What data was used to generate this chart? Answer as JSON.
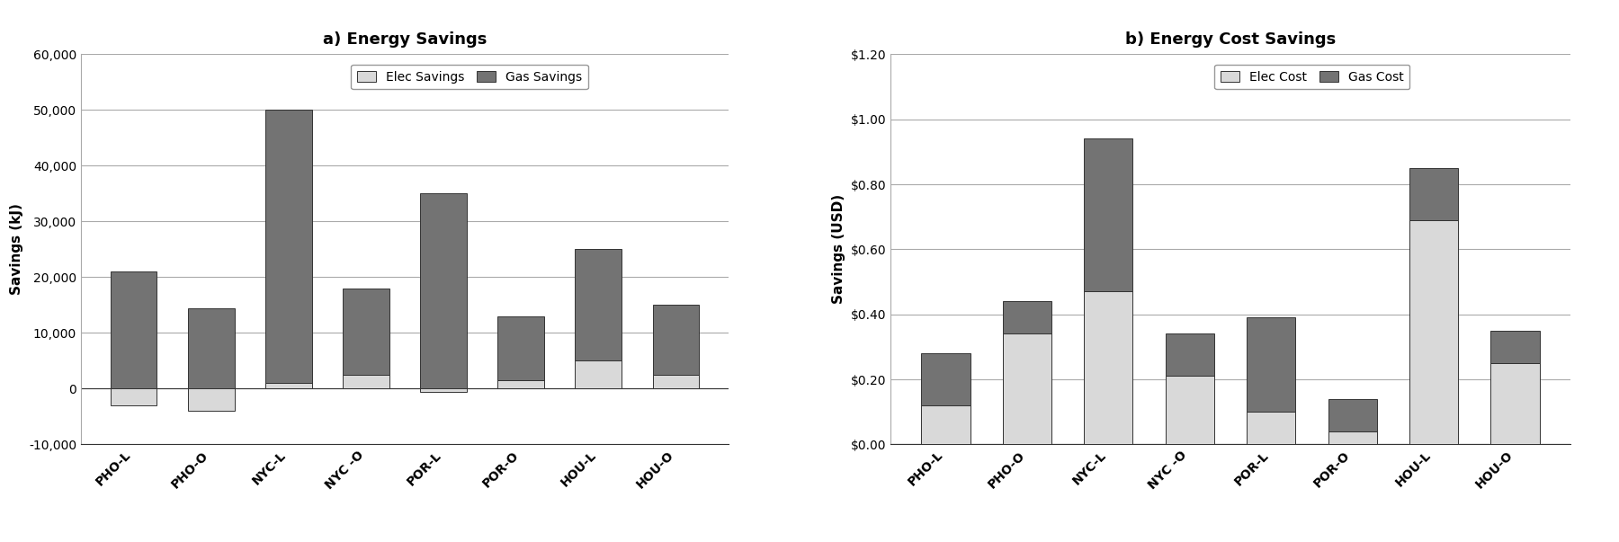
{
  "categories": [
    "PHO-L",
    "PHO-O",
    "NYC-L",
    "NYC -O",
    "POR-L",
    "POR-O",
    "HOU-L",
    "HOU-O"
  ],
  "chart_a": {
    "title": "a) Energy Savings",
    "ylabel": "Savings (kJ)",
    "elec_savings": [
      -3000,
      -4000,
      1000,
      2500,
      -500,
      1500,
      5000,
      2500
    ],
    "gas_savings": [
      21000,
      14500,
      49000,
      15500,
      35000,
      11500,
      20000,
      12500
    ],
    "elec_color": "#d9d9d9",
    "gas_color": "#737373",
    "ylim": [
      -10000,
      60000
    ],
    "yticks": [
      -10000,
      0,
      10000,
      20000,
      30000,
      40000,
      50000,
      60000
    ],
    "legend_labels": [
      "Elec Savings",
      "Gas Savings"
    ]
  },
  "chart_b": {
    "title": "b) Energy Cost Savings",
    "ylabel": "Savings (USD)",
    "elec_cost": [
      0.12,
      0.34,
      0.47,
      0.21,
      0.1,
      0.04,
      0.69,
      0.25
    ],
    "gas_cost": [
      0.16,
      0.1,
      0.47,
      0.13,
      0.29,
      0.1,
      0.16,
      0.1
    ],
    "elec_color": "#d9d9d9",
    "gas_color": "#737373",
    "ylim": [
      0,
      1.2
    ],
    "yticks": [
      0.0,
      0.2,
      0.4,
      0.6,
      0.8,
      1.0,
      1.2
    ],
    "legend_labels": [
      "Elec Cost",
      "Gas Cost"
    ]
  },
  "background_color": "#ffffff",
  "grid_color": "#aaaaaa",
  "title_fontsize": 13,
  "label_fontsize": 11,
  "tick_fontsize": 10,
  "legend_fontsize": 10
}
